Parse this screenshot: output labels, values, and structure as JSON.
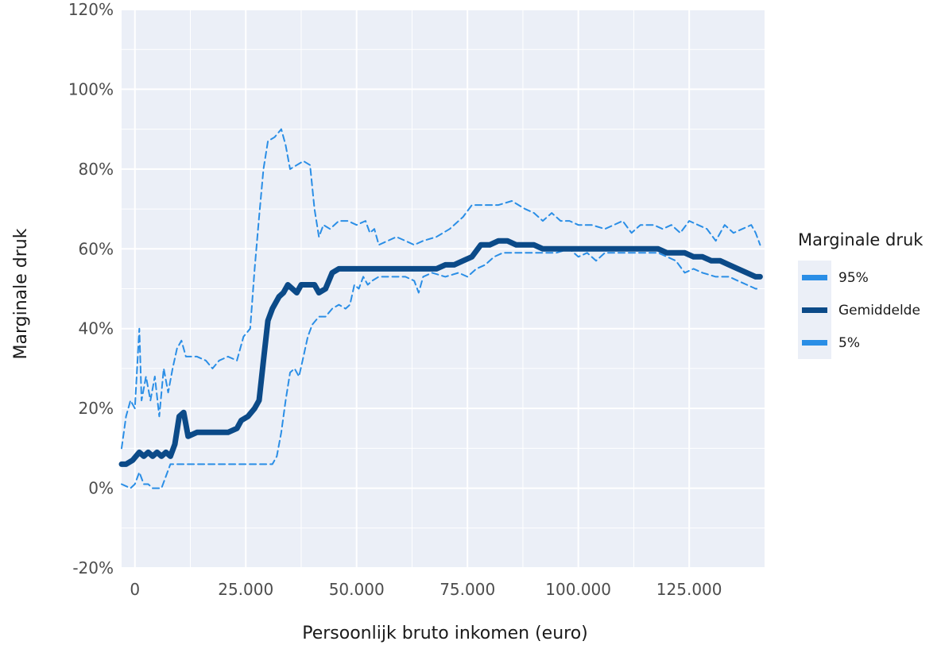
{
  "chart_data": {
    "type": "line",
    "title": "",
    "xlabel": "Persoonlijk bruto inkomen (euro)",
    "ylabel": "Marginale druk",
    "xlim": [
      -3000,
      142000
    ],
    "ylim": [
      -20,
      120
    ],
    "x_ticks": [
      {
        "value": 0,
        "label": "0"
      },
      {
        "value": 25000,
        "label": "25.000"
      },
      {
        "value": 50000,
        "label": "50.000"
      },
      {
        "value": 75000,
        "label": "75.000"
      },
      {
        "value": 100000,
        "label": "100.000"
      },
      {
        "value": 125000,
        "label": "125.000"
      }
    ],
    "y_ticks": [
      {
        "value": -20,
        "label": "-20%"
      },
      {
        "value": 0,
        "label": "0%"
      },
      {
        "value": 20,
        "label": "20%"
      },
      {
        "value": 40,
        "label": "40%"
      },
      {
        "value": 60,
        "label": "60%"
      },
      {
        "value": 80,
        "label": "80%"
      },
      {
        "value": 100,
        "label": "100%"
      },
      {
        "value": 120,
        "label": "120%"
      }
    ],
    "grid": true,
    "legend": {
      "title": "Marginale druk",
      "position": "right",
      "entries": [
        {
          "label": "95%",
          "series": 0
        },
        {
          "label": "Gemiddelde",
          "series": 1
        },
        {
          "label": "5%",
          "series": 2
        }
      ]
    },
    "series": [
      {
        "name": "95%",
        "color": "#2a8ee6",
        "style": "dashed",
        "points": [
          [
            -3000,
            10
          ],
          [
            -2000,
            18
          ],
          [
            -1000,
            22
          ],
          [
            0,
            20
          ],
          [
            1000,
            40
          ],
          [
            1500,
            22
          ],
          [
            2500,
            28
          ],
          [
            3500,
            22
          ],
          [
            4500,
            28
          ],
          [
            5500,
            18
          ],
          [
            6500,
            30
          ],
          [
            7500,
            24
          ],
          [
            8500,
            30
          ],
          [
            9500,
            35
          ],
          [
            10500,
            37
          ],
          [
            11500,
            33
          ],
          [
            14000,
            33
          ],
          [
            16000,
            32
          ],
          [
            17500,
            30
          ],
          [
            19000,
            32
          ],
          [
            21000,
            33
          ],
          [
            23000,
            32
          ],
          [
            24500,
            38
          ],
          [
            26000,
            40
          ],
          [
            27000,
            55
          ],
          [
            28000,
            68
          ],
          [
            29000,
            80
          ],
          [
            30000,
            87
          ],
          [
            31500,
            88
          ],
          [
            33000,
            90
          ],
          [
            34000,
            86
          ],
          [
            35000,
            80
          ],
          [
            36500,
            81
          ],
          [
            38000,
            82
          ],
          [
            39500,
            81
          ],
          [
            40500,
            70
          ],
          [
            41500,
            63
          ],
          [
            42500,
            66
          ],
          [
            44000,
            65
          ],
          [
            46000,
            67
          ],
          [
            48000,
            67
          ],
          [
            50000,
            66
          ],
          [
            52000,
            67
          ],
          [
            53000,
            64
          ],
          [
            54000,
            65
          ],
          [
            55000,
            61
          ],
          [
            57000,
            62
          ],
          [
            59000,
            63
          ],
          [
            61000,
            62
          ],
          [
            63000,
            61
          ],
          [
            65000,
            62
          ],
          [
            68000,
            63
          ],
          [
            71000,
            65
          ],
          [
            74000,
            68
          ],
          [
            76000,
            71
          ],
          [
            79000,
            71
          ],
          [
            82000,
            71
          ],
          [
            85000,
            72
          ],
          [
            88000,
            70
          ],
          [
            90000,
            69
          ],
          [
            92000,
            67
          ],
          [
            94000,
            69
          ],
          [
            96000,
            67
          ],
          [
            98000,
            67
          ],
          [
            100000,
            66
          ],
          [
            103000,
            66
          ],
          [
            106000,
            65
          ],
          [
            108000,
            66
          ],
          [
            110000,
            67
          ],
          [
            112000,
            64
          ],
          [
            114000,
            66
          ],
          [
            117000,
            66
          ],
          [
            119000,
            65
          ],
          [
            121000,
            66
          ],
          [
            123000,
            64
          ],
          [
            125000,
            67
          ],
          [
            127000,
            66
          ],
          [
            129000,
            65
          ],
          [
            131000,
            62
          ],
          [
            133000,
            66
          ],
          [
            135000,
            64
          ],
          [
            137000,
            65
          ],
          [
            139000,
            66
          ],
          [
            140000,
            64
          ],
          [
            141000,
            61
          ]
        ]
      },
      {
        "name": "Gemiddelde",
        "color": "#0b4a88",
        "style": "solid",
        "points": [
          [
            -3000,
            6
          ],
          [
            -2000,
            6
          ],
          [
            -500,
            7
          ],
          [
            1000,
            9
          ],
          [
            2000,
            8
          ],
          [
            3000,
            9
          ],
          [
            4000,
            8
          ],
          [
            5000,
            9
          ],
          [
            6000,
            8
          ],
          [
            7000,
            9
          ],
          [
            8000,
            8
          ],
          [
            9000,
            11
          ],
          [
            10000,
            18
          ],
          [
            11000,
            19
          ],
          [
            12000,
            13
          ],
          [
            14000,
            14
          ],
          [
            15500,
            14
          ],
          [
            17000,
            14
          ],
          [
            19000,
            14
          ],
          [
            21000,
            14
          ],
          [
            23000,
            15
          ],
          [
            24000,
            17
          ],
          [
            25500,
            18
          ],
          [
            27000,
            20
          ],
          [
            28000,
            22
          ],
          [
            29000,
            32
          ],
          [
            30000,
            42
          ],
          [
            31000,
            45
          ],
          [
            32500,
            48
          ],
          [
            33500,
            49
          ],
          [
            34500,
            51
          ],
          [
            35500,
            50
          ],
          [
            36500,
            49
          ],
          [
            37500,
            51
          ],
          [
            39000,
            51
          ],
          [
            40500,
            51
          ],
          [
            41500,
            49
          ],
          [
            43000,
            50
          ],
          [
            44500,
            54
          ],
          [
            46000,
            55
          ],
          [
            48000,
            55
          ],
          [
            50000,
            55
          ],
          [
            52000,
            55
          ],
          [
            54000,
            55
          ],
          [
            56000,
            55
          ],
          [
            58000,
            55
          ],
          [
            60000,
            55
          ],
          [
            62000,
            55
          ],
          [
            64000,
            55
          ],
          [
            66000,
            55
          ],
          [
            68000,
            55
          ],
          [
            70000,
            56
          ],
          [
            72000,
            56
          ],
          [
            74000,
            57
          ],
          [
            76000,
            58
          ],
          [
            78000,
            61
          ],
          [
            80000,
            61
          ],
          [
            82000,
            62
          ],
          [
            84000,
            62
          ],
          [
            86000,
            61
          ],
          [
            88000,
            61
          ],
          [
            90000,
            61
          ],
          [
            92000,
            60
          ],
          [
            94000,
            60
          ],
          [
            96000,
            60
          ],
          [
            98000,
            60
          ],
          [
            100000,
            60
          ],
          [
            102000,
            60
          ],
          [
            104000,
            60
          ],
          [
            106000,
            60
          ],
          [
            108000,
            60
          ],
          [
            110000,
            60
          ],
          [
            112000,
            60
          ],
          [
            114000,
            60
          ],
          [
            116000,
            60
          ],
          [
            118000,
            60
          ],
          [
            120000,
            59
          ],
          [
            122000,
            59
          ],
          [
            124000,
            59
          ],
          [
            126000,
            58
          ],
          [
            128000,
            58
          ],
          [
            130000,
            57
          ],
          [
            132000,
            57
          ],
          [
            134000,
            56
          ],
          [
            136000,
            55
          ],
          [
            138000,
            54
          ],
          [
            140000,
            53
          ],
          [
            141000,
            53
          ]
        ]
      },
      {
        "name": "5%",
        "color": "#2a8ee6",
        "style": "dashed",
        "points": [
          [
            -3000,
            1
          ],
          [
            -1000,
            0
          ],
          [
            0,
            1
          ],
          [
            1000,
            4
          ],
          [
            2000,
            1
          ],
          [
            3000,
            1
          ],
          [
            4000,
            0
          ],
          [
            5000,
            0
          ],
          [
            6000,
            0
          ],
          [
            7000,
            3
          ],
          [
            8000,
            6
          ],
          [
            9000,
            6
          ],
          [
            11000,
            6
          ],
          [
            15000,
            6
          ],
          [
            20000,
            6
          ],
          [
            25000,
            6
          ],
          [
            29000,
            6
          ],
          [
            30000,
            6
          ],
          [
            31000,
            6
          ],
          [
            32000,
            8
          ],
          [
            33000,
            14
          ],
          [
            34000,
            22
          ],
          [
            35000,
            29
          ],
          [
            36000,
            30
          ],
          [
            37000,
            28
          ],
          [
            38000,
            33
          ],
          [
            39000,
            38
          ],
          [
            40000,
            41
          ],
          [
            41500,
            43
          ],
          [
            43000,
            43
          ],
          [
            44500,
            45
          ],
          [
            46000,
            46
          ],
          [
            47500,
            45
          ],
          [
            48500,
            46
          ],
          [
            49500,
            51
          ],
          [
            50500,
            50
          ],
          [
            51500,
            53
          ],
          [
            52500,
            51
          ],
          [
            53500,
            52
          ],
          [
            55000,
            53
          ],
          [
            58000,
            53
          ],
          [
            61000,
            53
          ],
          [
            63000,
            52
          ],
          [
            64000,
            49
          ],
          [
            65000,
            53
          ],
          [
            67000,
            54
          ],
          [
            70000,
            53
          ],
          [
            73000,
            54
          ],
          [
            75000,
            53
          ],
          [
            77000,
            55
          ],
          [
            79000,
            56
          ],
          [
            81000,
            58
          ],
          [
            83000,
            59
          ],
          [
            86000,
            59
          ],
          [
            89000,
            59
          ],
          [
            92000,
            59
          ],
          [
            95000,
            59
          ],
          [
            98000,
            60
          ],
          [
            100000,
            58
          ],
          [
            102000,
            59
          ],
          [
            104000,
            57
          ],
          [
            106000,
            59
          ],
          [
            109000,
            59
          ],
          [
            112000,
            59
          ],
          [
            115000,
            59
          ],
          [
            118000,
            59
          ],
          [
            120000,
            58
          ],
          [
            122000,
            57
          ],
          [
            124000,
            54
          ],
          [
            126000,
            55
          ],
          [
            128000,
            54
          ],
          [
            131000,
            53
          ],
          [
            134000,
            53
          ],
          [
            136000,
            52
          ],
          [
            138000,
            51
          ],
          [
            140000,
            50
          ],
          [
            141000,
            50
          ]
        ]
      }
    ]
  }
}
